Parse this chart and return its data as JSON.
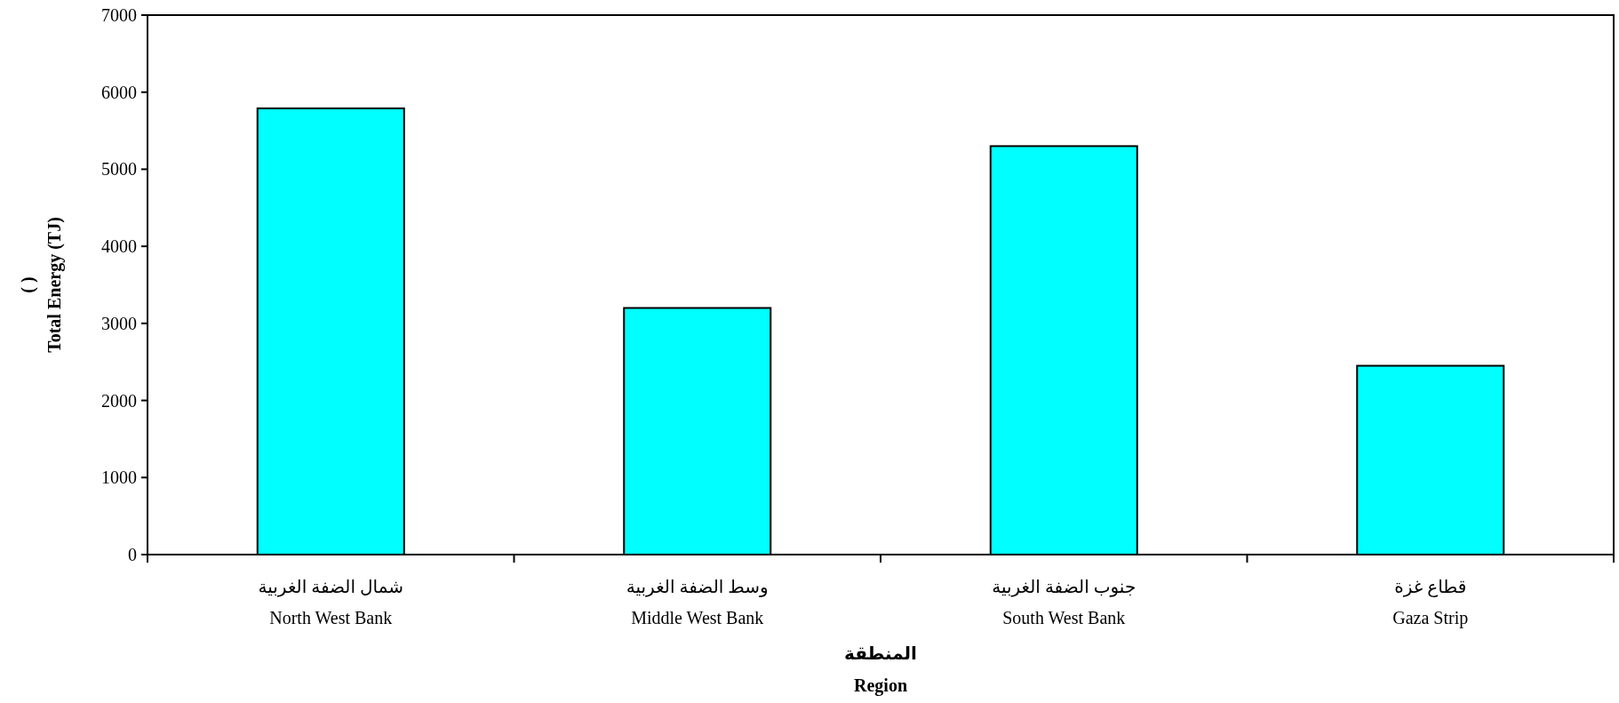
{
  "chart_data": {
    "type": "bar",
    "categories": [
      "شمال الضفة الغربية\nNorth West Bank",
      "وسط الضفة الغربية\nMiddle West Bank",
      "جنوب الضفة الغربية\nSouth West Bank",
      "قطاع غزة\nGaza Strip"
    ],
    "values": [
      5790,
      3200,
      5300,
      2450
    ],
    "color": "#00ffff",
    "xlabel": "المنطقة\nRegion",
    "ylabel": "(      )\nTotal Energy (TJ)",
    "ylim": [
      0,
      7000
    ],
    "yticks": [
      0,
      1000,
      2000,
      3000,
      4000,
      5000,
      6000,
      7000
    ],
    "grid": false
  }
}
